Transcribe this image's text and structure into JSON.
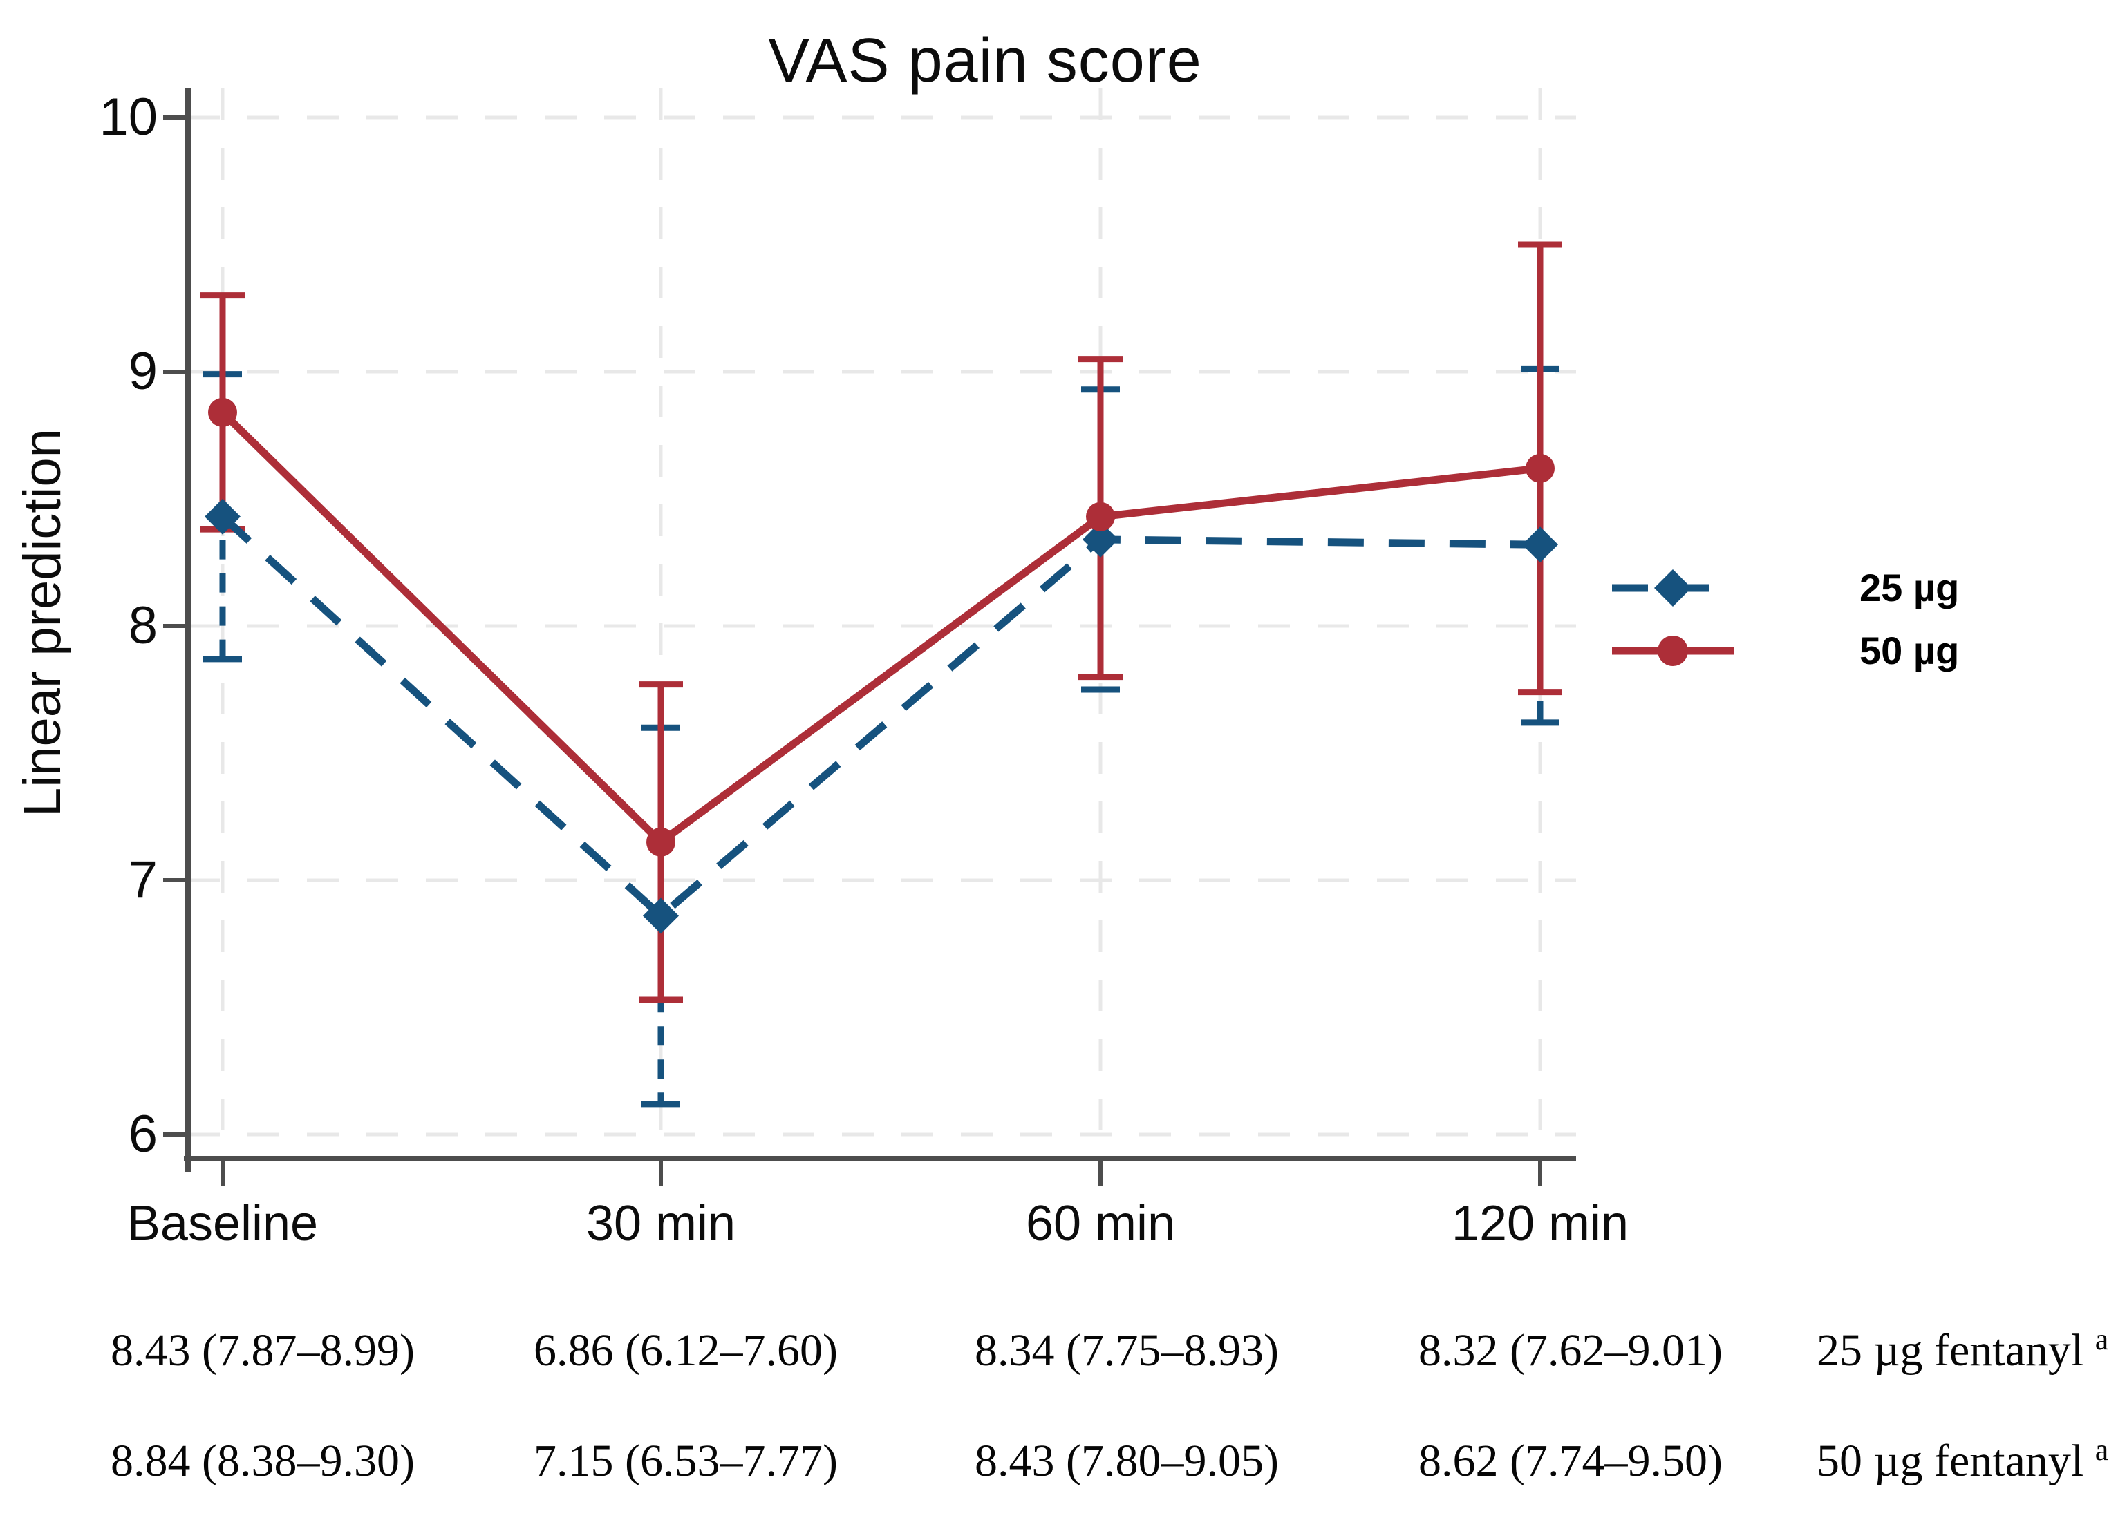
{
  "chart_data": {
    "type": "line",
    "title": "VAS pain score",
    "ylabel": "Linear prediction",
    "xlabel": "",
    "categories": [
      "Baseline",
      "30 min",
      "60 min",
      "120 min"
    ],
    "yticks": [
      6,
      7,
      8,
      9,
      10
    ],
    "ylim": [
      5.85,
      10.15
    ],
    "grid": true,
    "legend_position": "right",
    "series": [
      {
        "name": "25 µg",
        "color": "#16527e",
        "line_style": "dashed",
        "marker": "diamond",
        "values": [
          8.43,
          6.86,
          8.34,
          8.32
        ],
        "ci_low": [
          7.87,
          6.12,
          7.75,
          7.62
        ],
        "ci_high": [
          8.99,
          7.6,
          8.93,
          9.01
        ]
      },
      {
        "name": "50 µg",
        "color": "#ad2e38",
        "line_style": "solid",
        "marker": "circle",
        "values": [
          8.84,
          7.15,
          8.43,
          8.62
        ],
        "ci_low": [
          8.38,
          6.53,
          7.8,
          7.74
        ],
        "ci_high": [
          9.3,
          7.77,
          9.05,
          9.5
        ]
      }
    ],
    "colors": {
      "axis": "#4d4d4d",
      "gridline": "#e8e8e8",
      "text": "#0c0c0c"
    }
  },
  "table": {
    "rows": [
      {
        "cells": [
          "8.43 (7.87–8.99)",
          "6.86 (6.12–7.60)",
          "8.34 (7.75–8.93)",
          "8.32 (7.62–9.01)"
        ],
        "label": "25 µg fentanyl",
        "label_sup": "a"
      },
      {
        "cells": [
          "8.84 (8.38–9.30)",
          "7.15 (6.53–7.77)",
          "8.43 (7.80–9.05)",
          "8.62 (7.74–9.50)"
        ],
        "label": "50 µg fentanyl",
        "label_sup": "a"
      }
    ]
  }
}
